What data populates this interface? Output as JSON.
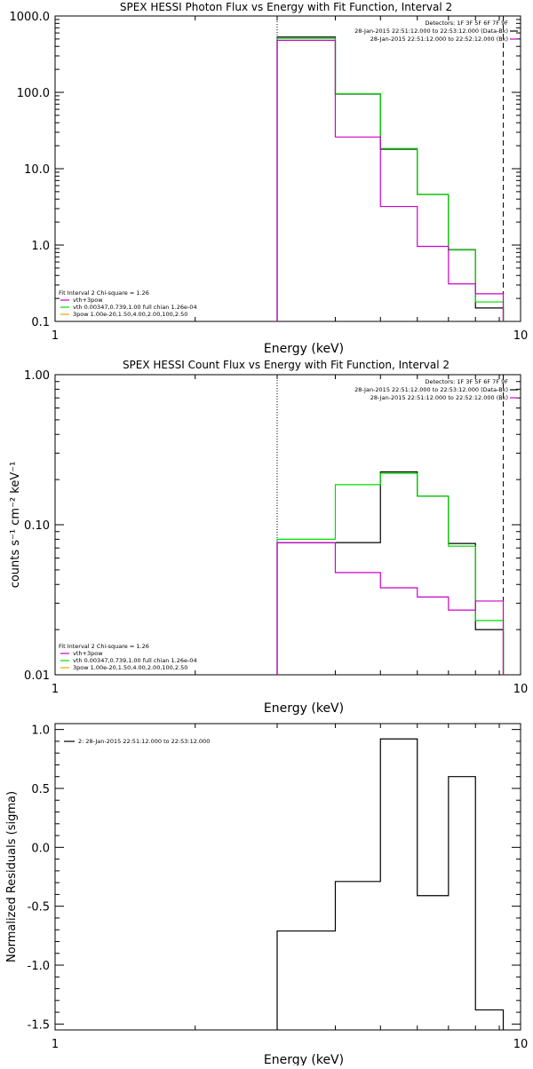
{
  "chart_data": [
    {
      "type": "line",
      "title": "SPEX HESSI Photon Flux vs Energy with Fit Function, Interval 2",
      "xlabel": "Energy (keV)",
      "ylabel": "",
      "xscale": "log",
      "yscale": "log",
      "xlim": [
        1,
        10
      ],
      "ylim": [
        0.1,
        1000
      ],
      "xticks": [
        "1",
        "10"
      ],
      "yticks": [
        "1000.0",
        "100.0",
        "10.0",
        "1.0",
        "0.1"
      ],
      "vlines": [
        {
          "x": 3,
          "style": "dotted"
        },
        {
          "x": 9.18,
          "style": "dashed"
        }
      ],
      "legend_top_right": [
        "Detectors: 1F 3F 5F 6F 7F 9F",
        "28-Jan-2015 22:51:12.000 to 22:53:12.000 (Data-Bk)",
        "28-Jan-2015 22:51:12.000 to 22:52:12.000 (Bk)"
      ],
      "legend_bottom_left": [
        "Fit Interval 2   Chi-square = 1.26",
        "vth+3pow",
        "vth 0.00347,0.739,1.00  full chian 1.26e-04",
        "3pow 1.00e-20,1.50,4.00,2.00,100,2.50"
      ],
      "bin_edges": [
        3,
        4,
        5,
        6,
        7,
        8,
        9.18
      ],
      "series": [
        {
          "name": "Data-Bk",
          "color": "#000000",
          "values": [
            530,
            95,
            18,
            4.6,
            0.87,
            0.15
          ]
        },
        {
          "name": "vth+3pow",
          "color": "#00dd00",
          "values": [
            510,
            96,
            18.4,
            4.6,
            0.86,
            0.18
          ]
        },
        {
          "name": "Bk",
          "color": "#cc00cc",
          "values": [
            480,
            26,
            3.2,
            0.96,
            0.31,
            0.23
          ]
        }
      ]
    },
    {
      "type": "line",
      "title": "SPEX HESSI Count Flux vs Energy with Fit Function, Interval 2",
      "xlabel": "Energy (keV)",
      "ylabel": "counts s⁻¹ cm⁻² keV⁻¹",
      "xscale": "log",
      "yscale": "log",
      "xlim": [
        1,
        10
      ],
      "ylim": [
        0.01,
        1
      ],
      "xticks": [
        "1",
        "10"
      ],
      "yticks": [
        "1.00",
        "0.10",
        "0.01"
      ],
      "vlines": [
        {
          "x": 3,
          "style": "dotted"
        },
        {
          "x": 9.18,
          "style": "dashed"
        }
      ],
      "legend_top_right": [
        "Detectors: 1F 3F 5F 6F 7F 9F",
        "28-Jan-2015 22:51:12.000 to 22:53:12.000 (Data-Bk)",
        "28-Jan-2015 22:51:12.000 to 22:52:12.000 (Bk)"
      ],
      "legend_bottom_left": [
        "Fit Interval 2   Chi-square = 1.26",
        "vth+3pow",
        "vth 0.00347,0.739,1.00  full chian 1.26e-04",
        "3pow 1.00e-20,1.50,4.00,2.00,100,2.50"
      ],
      "bin_edges": [
        3,
        4,
        5,
        6,
        7,
        8,
        9.18
      ],
      "series": [
        {
          "name": "Data-Bk",
          "color": "#000000",
          "values": [
            0.076,
            0.076,
            0.225,
            0.155,
            0.075,
            0.02
          ]
        },
        {
          "name": "vth+3pow",
          "color": "#00dd00",
          "values": [
            0.08,
            0.185,
            0.22,
            0.155,
            0.072,
            0.023
          ]
        },
        {
          "name": "Bk",
          "color": "#cc00cc",
          "values": [
            0.076,
            0.048,
            0.038,
            0.033,
            0.027,
            0.031
          ]
        }
      ]
    },
    {
      "type": "line",
      "title": "",
      "xlabel": "Energy (keV)",
      "ylabel": "Normalized Residuals (sigma)",
      "xscale": "log",
      "yscale": "linear",
      "xlim": [
        1,
        10
      ],
      "ylim": [
        -1.55,
        1.05
      ],
      "xticks": [
        "1",
        "10"
      ],
      "yticks": [
        "1.0",
        "0.5",
        "0.0",
        "-0.5",
        "-1.0",
        "-1.5"
      ],
      "legend_top_left": [
        "2: 28-Jan-2015 22:51:12.000 to 22:53:12.000"
      ],
      "bin_edges": [
        3,
        4,
        5,
        6,
        7,
        8,
        9.18
      ],
      "series": [
        {
          "name": "2: 28-Jan-2015 22:51:12.000 to 22:53:12.000",
          "color": "#000000",
          "values": [
            -0.71,
            -0.29,
            0.92,
            -0.41,
            0.6,
            -1.38
          ]
        }
      ]
    }
  ]
}
